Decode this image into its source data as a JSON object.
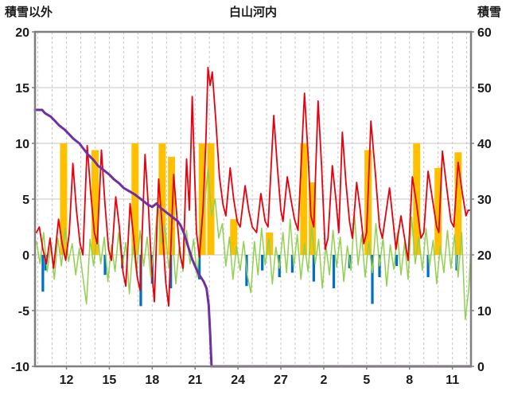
{
  "header": {
    "left_axis_title": "積雪以外",
    "title": "白山河内",
    "right_axis_title": "積雪"
  },
  "chart_data": {
    "type": "line",
    "title": "白山河内",
    "legend": "none",
    "grid": {
      "horizontal": "solid",
      "vertical": "dashed-daily"
    },
    "left_axis": {
      "title": "積雪以外",
      "min": -10,
      "max": 20,
      "ticks": [
        20,
        15,
        10,
        5,
        0,
        -5,
        -10
      ]
    },
    "right_axis": {
      "title": "積雪",
      "min": 0,
      "max": 60,
      "ticks": [
        60,
        50,
        40,
        30,
        20,
        10,
        0
      ]
    },
    "x_axis": {
      "min": 9.8,
      "max": 40.3,
      "grid_step": 1,
      "ticks": [
        {
          "x": 12,
          "label": "12"
        },
        {
          "x": 15,
          "label": "15"
        },
        {
          "x": 18,
          "label": "18"
        },
        {
          "x": 21,
          "label": "21"
        },
        {
          "x": 24,
          "label": "24"
        },
        {
          "x": 27,
          "label": "27"
        },
        {
          "x": 30,
          "label": "2"
        },
        {
          "x": 33,
          "label": "5"
        },
        {
          "x": 36,
          "label": "8"
        },
        {
          "x": 39,
          "label": "11"
        }
      ]
    },
    "styles": {
      "background": "#ffffff",
      "grid_color": "#c6c6c6",
      "frame_color": "#7f7f7f",
      "text_color": "#1a1a1a",
      "red": "#e8000d",
      "purple": "#7030a0",
      "green": "#92d050",
      "orange": "#ffc000",
      "blue": "#0070c0"
    },
    "series": [
      {
        "id": "orange-bars",
        "type": "bar",
        "color": "#ffc000",
        "bar_width": 0.5,
        "bars": [
          [
            11.8,
            10
          ],
          [
            14.0,
            9.4
          ],
          [
            16.8,
            10
          ],
          [
            18.7,
            10
          ],
          [
            19.35,
            8.8
          ],
          [
            21.5,
            10
          ],
          [
            22.1,
            10
          ],
          [
            23.7,
            3.2
          ],
          [
            26.2,
            2.0
          ],
          [
            28.6,
            10
          ],
          [
            29.2,
            6.5
          ],
          [
            33.1,
            9.4
          ],
          [
            36.5,
            10
          ],
          [
            38.0,
            7.8
          ],
          [
            39.4,
            9.2
          ]
        ]
      },
      {
        "id": "blue-bars",
        "type": "bar",
        "color": "#0070c0",
        "bar_width": 0.18,
        "bars": [
          [
            10.35,
            -3.3
          ],
          [
            10.55,
            -1.4
          ],
          [
            14.7,
            -1.8
          ],
          [
            15.9,
            -1.2
          ],
          [
            17.2,
            -4.6
          ],
          [
            18.0,
            -2.6
          ],
          [
            19.3,
            -3.0
          ],
          [
            21.3,
            -2.2
          ],
          [
            24.6,
            -2.8
          ],
          [
            25.7,
            -1.4
          ],
          [
            26.9,
            -2.0
          ],
          [
            27.8,
            -1.6
          ],
          [
            29.3,
            -2.4
          ],
          [
            30.7,
            -3.0
          ],
          [
            31.8,
            -1.2
          ],
          [
            33.4,
            -4.4
          ],
          [
            33.9,
            -2.0
          ],
          [
            35.1,
            -1.0
          ],
          [
            37.3,
            -2.0
          ],
          [
            39.3,
            -1.4
          ]
        ]
      },
      {
        "id": "green-line",
        "type": "line-sampled",
        "color": "#92d050",
        "stroke_width": 1.5,
        "x0": 9.9,
        "dx": 0.25,
        "values": [
          1.2,
          -0.8,
          2.0,
          -1.5,
          0.8,
          -2.2,
          1.5,
          -1.0,
          2.4,
          -0.6,
          1.0,
          -1.8,
          0.6,
          -2.0,
          -4.4,
          1.4,
          -1.0,
          2.2,
          -0.8,
          1.6,
          -2.4,
          0.9,
          -1.5,
          2.0,
          -1.2,
          1.1,
          -3.5,
          0.8,
          -1.6,
          2.2,
          -1.0,
          1.6,
          -2.0,
          0.8,
          4.8,
          1.0,
          2.6,
          -1.2,
          1.8,
          -2.6,
          0.9,
          -1.5,
          2.2,
          -0.8,
          1.4,
          -2.0,
          3.0,
          4.2,
          7.8,
          3.5,
          5.0,
          1.5,
          2.8,
          -1.0,
          1.6,
          -2.2,
          0.8,
          -1.4,
          1.2,
          -1.8,
          -3.4,
          1.2,
          -1.8,
          2.4,
          -0.9,
          1.5,
          -2.6,
          0.7,
          -1.2,
          2.0,
          -1.6,
          3.2,
          -1.0,
          1.8,
          -2.2,
          1.0,
          -1.5,
          2.6,
          -0.8,
          1.4,
          -3.0,
          0.9,
          -1.8,
          2.2,
          -1.1,
          1.6,
          -2.4,
          0.8,
          -1.4,
          3.6,
          -0.9,
          1.8,
          -2.0,
          1.2,
          -1.6,
          2.8,
          -1.0,
          1.5,
          -2.8,
          0.9,
          -1.3,
          2.0,
          -1.8,
          1.1,
          -2.2,
          3.4,
          -0.8,
          1.6,
          -1.4,
          2.4,
          -1.0,
          1.3,
          -2.6,
          0.8,
          -1.6,
          2.2,
          -1.2,
          1.8,
          -2.0,
          2.0,
          -5.8,
          -3.0,
          1.0
        ]
      },
      {
        "id": "red-line",
        "type": "line",
        "color": "#e8000d",
        "stroke_width": 1.8,
        "points": [
          [
            9.9,
            2.0
          ],
          [
            10.1,
            2.5
          ],
          [
            10.35,
            0.5
          ],
          [
            10.6,
            -0.8
          ],
          [
            10.85,
            1.5
          ],
          [
            11.1,
            -1.2
          ],
          [
            11.45,
            3.2
          ],
          [
            11.7,
            1.0
          ],
          [
            11.95,
            -0.5
          ],
          [
            12.2,
            2.0
          ],
          [
            12.45,
            8.2
          ],
          [
            12.7,
            4.0
          ],
          [
            12.95,
            1.0
          ],
          [
            13.15,
            0.0
          ],
          [
            13.45,
            9.8
          ],
          [
            13.7,
            5.5
          ],
          [
            13.95,
            2.0
          ],
          [
            14.15,
            1.0
          ],
          [
            14.45,
            9.4
          ],
          [
            14.7,
            4.5
          ],
          [
            14.95,
            0.5
          ],
          [
            15.15,
            -0.5
          ],
          [
            15.45,
            5.2
          ],
          [
            15.7,
            2.5
          ],
          [
            15.95,
            -1.5
          ],
          [
            16.15,
            -2.8
          ],
          [
            16.45,
            4.6
          ],
          [
            16.7,
            1.5
          ],
          [
            16.95,
            -2.0
          ],
          [
            17.15,
            -3.2
          ],
          [
            17.5,
            9.0
          ],
          [
            17.75,
            4.0
          ],
          [
            17.95,
            -1.0
          ],
          [
            18.15,
            -4.2
          ],
          [
            18.45,
            6.8
          ],
          [
            18.7,
            2.5
          ],
          [
            18.95,
            -2.5
          ],
          [
            19.15,
            -4.6
          ],
          [
            19.5,
            7.2
          ],
          [
            19.75,
            3.0
          ],
          [
            19.95,
            0.0
          ],
          [
            20.15,
            -1.2
          ],
          [
            20.4,
            8.6
          ],
          [
            20.6,
            4.0
          ],
          [
            20.8,
            14.2
          ],
          [
            20.95,
            8.0
          ],
          [
            21.1,
            2.0
          ],
          [
            21.3,
            -0.2
          ],
          [
            21.55,
            4.0
          ],
          [
            21.75,
            10.0
          ],
          [
            21.9,
            16.8
          ],
          [
            22.05,
            15.2
          ],
          [
            22.2,
            16.4
          ],
          [
            22.45,
            12.0
          ],
          [
            22.7,
            7.0
          ],
          [
            22.95,
            4.5
          ],
          [
            23.15,
            3.5
          ],
          [
            23.45,
            7.8
          ],
          [
            23.7,
            5.0
          ],
          [
            23.95,
            3.0
          ],
          [
            24.15,
            2.5
          ],
          [
            24.5,
            6.2
          ],
          [
            24.75,
            4.0
          ],
          [
            25.0,
            2.5
          ],
          [
            25.3,
            2.0
          ],
          [
            25.6,
            5.5
          ],
          [
            25.9,
            3.0
          ],
          [
            26.1,
            2.5
          ],
          [
            26.5,
            12.5
          ],
          [
            26.75,
            8.0
          ],
          [
            27.0,
            4.0
          ],
          [
            27.15,
            3.0
          ],
          [
            27.45,
            7.0
          ],
          [
            27.7,
            5.0
          ],
          [
            27.95,
            3.2
          ],
          [
            28.2,
            2.2
          ],
          [
            28.65,
            14.5
          ],
          [
            28.9,
            9.0
          ],
          [
            29.1,
            3.5
          ],
          [
            29.3,
            2.5
          ],
          [
            29.6,
            13.8
          ],
          [
            29.85,
            8.0
          ],
          [
            30.1,
            0.5
          ],
          [
            30.3,
            1.5
          ],
          [
            30.6,
            8.0
          ],
          [
            30.85,
            5.0
          ],
          [
            31.05,
            2.0
          ],
          [
            31.3,
            11.0
          ],
          [
            31.55,
            6.5
          ],
          [
            31.8,
            3.0
          ],
          [
            32.0,
            1.5
          ],
          [
            32.3,
            6.5
          ],
          [
            32.55,
            4.0
          ],
          [
            32.8,
            1.0
          ],
          [
            33.0,
            2.0
          ],
          [
            33.3,
            12.0
          ],
          [
            33.6,
            7.5
          ],
          [
            33.9,
            2.5
          ],
          [
            34.1,
            1.5
          ],
          [
            34.6,
            6.0
          ],
          [
            34.85,
            3.0
          ],
          [
            35.05,
            0.5
          ],
          [
            35.4,
            3.5
          ],
          [
            35.65,
            1.5
          ],
          [
            35.9,
            -0.5
          ],
          [
            36.2,
            7.0
          ],
          [
            36.5,
            4.5
          ],
          [
            36.8,
            1.5
          ],
          [
            37.0,
            2.0
          ],
          [
            37.3,
            7.5
          ],
          [
            37.6,
            5.0
          ],
          [
            37.9,
            2.5
          ],
          [
            38.05,
            2.0
          ],
          [
            38.3,
            9.3
          ],
          [
            38.6,
            6.0
          ],
          [
            38.9,
            3.0
          ],
          [
            39.1,
            2.5
          ],
          [
            39.4,
            8.3
          ],
          [
            39.7,
            5.5
          ],
          [
            39.95,
            3.5
          ],
          [
            40.1,
            4.0
          ],
          [
            40.3,
            4.0
          ]
        ]
      },
      {
        "id": "purple-line",
        "type": "line",
        "color": "#7030a0",
        "stroke_width": 3,
        "points": [
          [
            9.8,
            13.0
          ],
          [
            10.3,
            13.0
          ],
          [
            10.5,
            12.7
          ],
          [
            10.9,
            12.4
          ],
          [
            11.2,
            12.0
          ],
          [
            11.5,
            11.6
          ],
          [
            11.9,
            11.2
          ],
          [
            12.2,
            10.8
          ],
          [
            12.5,
            10.4
          ],
          [
            12.9,
            10.0
          ],
          [
            13.2,
            9.5
          ],
          [
            13.5,
            9.0
          ],
          [
            13.9,
            8.5
          ],
          [
            14.2,
            8.0
          ],
          [
            14.6,
            7.6
          ],
          [
            15.0,
            7.2
          ],
          [
            15.3,
            6.8
          ],
          [
            15.7,
            6.4
          ],
          [
            16.0,
            6.0
          ],
          [
            16.4,
            5.7
          ],
          [
            16.8,
            5.4
          ],
          [
            17.1,
            5.1
          ],
          [
            17.4,
            4.8
          ],
          [
            17.7,
            4.5
          ],
          [
            18.0,
            4.3
          ],
          [
            18.3,
            4.6
          ],
          [
            18.6,
            4.2
          ],
          [
            18.9,
            3.9
          ],
          [
            19.2,
            3.6
          ],
          [
            19.5,
            3.3
          ],
          [
            19.8,
            3.0
          ],
          [
            20.0,
            2.6
          ],
          [
            20.2,
            2.0
          ],
          [
            20.4,
            1.2
          ],
          [
            20.6,
            0.4
          ],
          [
            20.8,
            -0.4
          ],
          [
            21.0,
            -1.0
          ],
          [
            21.2,
            -1.6
          ],
          [
            21.4,
            -2.0
          ],
          [
            21.6,
            -2.4
          ],
          [
            21.8,
            -3.0
          ],
          [
            21.95,
            -4.5
          ],
          [
            22.05,
            -7.0
          ],
          [
            22.15,
            -10.0
          ],
          [
            40.3,
            -10.0
          ]
        ]
      }
    ]
  }
}
